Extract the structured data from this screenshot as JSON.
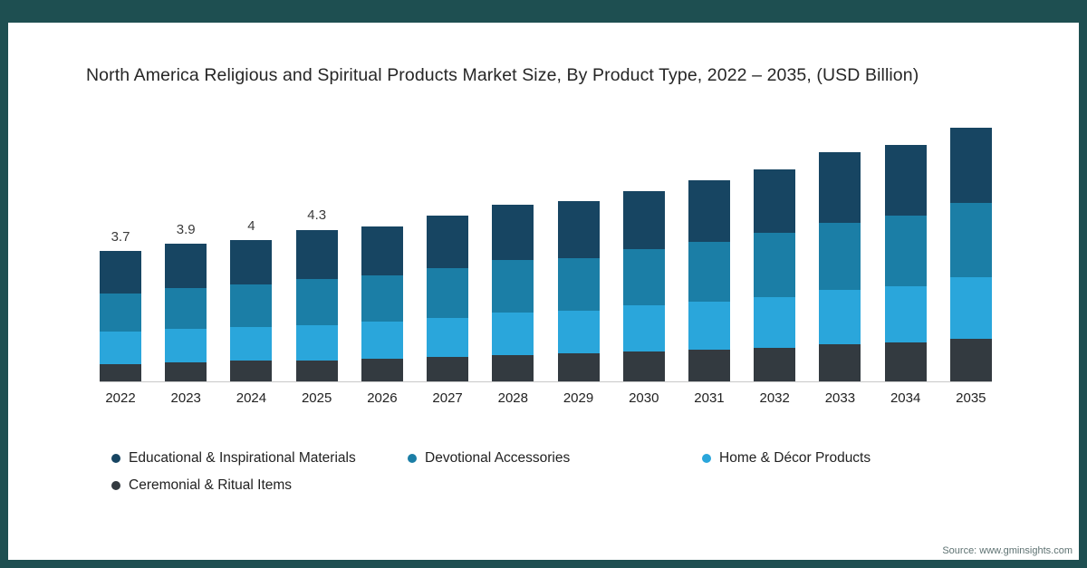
{
  "title": "North America Religious and Spiritual Products Market Size, By Product Type, 2022 – 2035, (USD Billion)",
  "source": "Source: www.gminsights.com",
  "frame": {
    "border_color": "#1e4f51"
  },
  "legend": {
    "items": [
      {
        "label": "Educational & Inspirational Materials",
        "color": "#174562"
      },
      {
        "label": "Devotional Accessories",
        "color": "#1b7ea6"
      },
      {
        "label": "Home & Décor Products",
        "color": "#2aa6db"
      },
      {
        "label": "Ceremonial & Ritual Items",
        "color": "#333a40"
      }
    ]
  },
  "chart_data": {
    "type": "bar",
    "stacked": true,
    "title": "North America Religious and Spiritual Products Market Size, By Product Type, 2022 – 2035, (USD Billion)",
    "xlabel": "",
    "ylabel": "USD Billion",
    "ylim": [
      0,
      7.7
    ],
    "grid": false,
    "legend_position": "bottom",
    "categories": [
      "2022",
      "2023",
      "2024",
      "2025",
      "2026",
      "2027",
      "2028",
      "2029",
      "2030",
      "2031",
      "2032",
      "2033",
      "2034",
      "2035"
    ],
    "labels": [
      "3.7",
      "3.9",
      "4",
      "4.3",
      "",
      "",
      "",
      "",
      "",
      "",
      "",
      "",
      "",
      ""
    ],
    "totals": [
      3.7,
      3.9,
      4.0,
      4.3,
      4.4,
      4.7,
      5.0,
      5.1,
      5.4,
      5.7,
      6.0,
      6.5,
      6.7,
      7.2
    ],
    "series": [
      {
        "name": "Ceremonial & Ritual Items",
        "color": "#333a40",
        "values": [
          0.5,
          0.55,
          0.6,
          0.6,
          0.65,
          0.7,
          0.75,
          0.8,
          0.85,
          0.9,
          0.95,
          1.05,
          1.1,
          1.2
        ]
      },
      {
        "name": "Home & Décor Products",
        "color": "#2aa6db",
        "values": [
          0.9,
          0.95,
          0.95,
          1.0,
          1.05,
          1.1,
          1.2,
          1.2,
          1.3,
          1.35,
          1.45,
          1.55,
          1.6,
          1.75
        ]
      },
      {
        "name": "Devotional Accessories",
        "color": "#1b7ea6",
        "values": [
          1.1,
          1.15,
          1.2,
          1.3,
          1.3,
          1.4,
          1.5,
          1.5,
          1.6,
          1.7,
          1.8,
          1.9,
          2.0,
          2.1
        ]
      },
      {
        "name": "Educational & Inspirational Materials",
        "color": "#174562",
        "values": [
          1.2,
          1.25,
          1.25,
          1.4,
          1.4,
          1.5,
          1.55,
          1.6,
          1.65,
          1.75,
          1.8,
          2.0,
          2.0,
          2.15
        ]
      }
    ]
  }
}
